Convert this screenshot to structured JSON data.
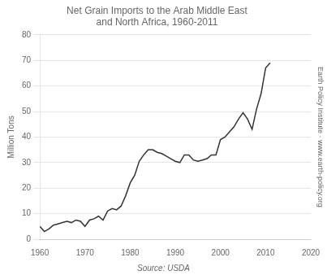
{
  "chart_data": {
    "type": "line",
    "title": "Net Grain Imports to the Arab Middle East\nand North Africa, 1960-2011",
    "y_label": "Million Tons",
    "annotations": [
      "Earth Policy Institute · www.earth-policy.org",
      "Source: USDA"
    ],
    "x": [
      1960,
      1961,
      1962,
      1963,
      1964,
      1965,
      1966,
      1967,
      1968,
      1969,
      1970,
      1971,
      1972,
      1973,
      1974,
      1975,
      1976,
      1977,
      1978,
      1979,
      1980,
      1981,
      1982,
      1983,
      1984,
      1985,
      1986,
      1987,
      1988,
      1989,
      1990,
      1991,
      1992,
      1993,
      1994,
      1995,
      1996,
      1997,
      1998,
      1999,
      2000,
      2001,
      2002,
      2003,
      2004,
      2005,
      2006,
      2007,
      2008,
      2009,
      2010,
      2011
    ],
    "values": [
      5.0,
      3.0,
      4.0,
      5.5,
      6.0,
      6.5,
      7.0,
      6.5,
      7.5,
      7.0,
      5.0,
      7.5,
      8.0,
      9.0,
      7.5,
      11.0,
      12.0,
      11.5,
      13.0,
      17.0,
      22.0,
      25.0,
      30.5,
      33.0,
      35.0,
      35.0,
      34.0,
      33.5,
      32.5,
      31.5,
      30.5,
      30.0,
      33.0,
      33.0,
      31.0,
      30.5,
      31.0,
      31.5,
      33.0,
      33.0,
      39.0,
      40.0,
      42.0,
      44.0,
      47.0,
      49.5,
      47.0,
      43.0,
      51.0,
      57.0,
      67.0,
      69.0
    ],
    "color": "#333333",
    "xlim": [
      1960,
      2020
    ],
    "xticks": [
      1960,
      1970,
      1980,
      1990,
      2000,
      2010,
      2020
    ],
    "ylim": [
      0,
      80
    ],
    "yticks": [
      0,
      10,
      20,
      30,
      40,
      50,
      60,
      70,
      80
    ],
    "grid": "y"
  }
}
